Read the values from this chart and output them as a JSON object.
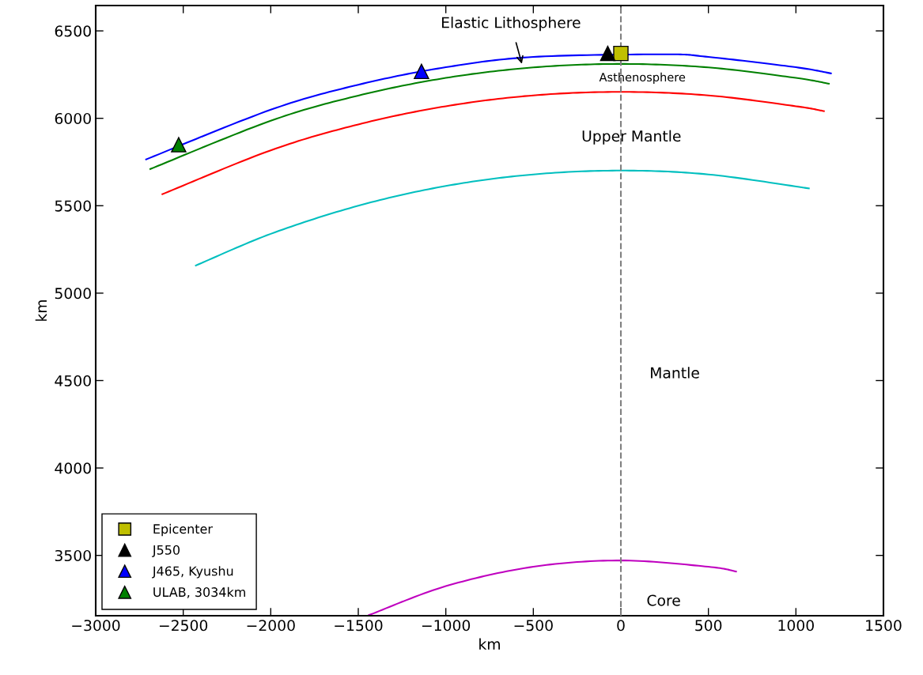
{
  "chart_data": {
    "type": "line",
    "xlabel": "km",
    "ylabel": "km",
    "xlim": [
      -3000,
      1500
    ],
    "ylim": [
      3155,
      6645
    ],
    "xticks": [
      -3000,
      -2500,
      -2000,
      -1500,
      -1000,
      -500,
      0,
      500,
      1000,
      1500
    ],
    "yticks": [
      3500,
      4000,
      4500,
      5000,
      5500,
      6000,
      6500
    ],
    "grid": false,
    "legend": "bottom left",
    "series": [
      {
        "color": "#0000ff",
        "x": [
          -2712,
          -2000,
          -1500,
          -1000,
          -500,
          250,
          500,
          1000,
          1200
        ],
        "values": [
          5765,
          6049,
          6192,
          6292,
          6351,
          6366,
          6351,
          6292,
          6257
        ]
      },
      {
        "color": "#008000",
        "x": [
          -2688,
          -2000,
          -1500,
          -1000,
          -500,
          0,
          500,
          1000,
          1188
        ],
        "values": [
          5710,
          5986,
          6130,
          6231,
          6291,
          6311,
          6291,
          6231,
          6198
        ]
      },
      {
        "color": "#ff0000",
        "x": [
          -2619,
          -2000,
          -1500,
          -1000,
          -500,
          0,
          500,
          1000,
          1160
        ],
        "values": [
          5566,
          5817,
          5965,
          6069,
          6131,
          6151,
          6131,
          6069,
          6041
        ]
      },
      {
        "color": "#00bfbf",
        "x": [
          -2428,
          -2000,
          -1500,
          -1000,
          -500,
          0,
          500,
          1074
        ],
        "values": [
          5158,
          5339,
          5500,
          5613,
          5679,
          5701,
          5679,
          5599
        ]
      },
      {
        "color": "#bf00bf",
        "x": [
          -1440,
          -1000,
          -500,
          0,
          500,
          658
        ],
        "values": [
          3158,
          3324,
          3435,
          3471,
          3435,
          3408
        ]
      },
      {
        "type": "scatter",
        "name": "Epicenter",
        "color": "#bfbf00",
        "marker": "square",
        "x": [
          0
        ],
        "values": [
          6371
        ]
      },
      {
        "type": "scatter",
        "name": "J550",
        "color": "#000000",
        "marker": "triangle",
        "x": [
          -75
        ],
        "values": [
          6371
        ]
      },
      {
        "type": "scatter",
        "name": "J465, Kyushu",
        "color": "#0000ff",
        "marker": "triangle",
        "x": [
          -1139
        ],
        "values": [
          6268
        ]
      },
      {
        "type": "scatter",
        "name": "ULAB, 3034km",
        "color": "#008000",
        "marker": "triangle",
        "x": [
          -2526
        ],
        "values": [
          5849
        ]
      }
    ],
    "ref_lines": [
      {
        "axis": "x",
        "value": 0,
        "color": "#808080",
        "line_style": "dashed"
      }
    ],
    "annotations": [
      "Elastic Lithosphere",
      "Asthenosphere",
      "Upper Mantle",
      "Mantle",
      "Core"
    ]
  }
}
